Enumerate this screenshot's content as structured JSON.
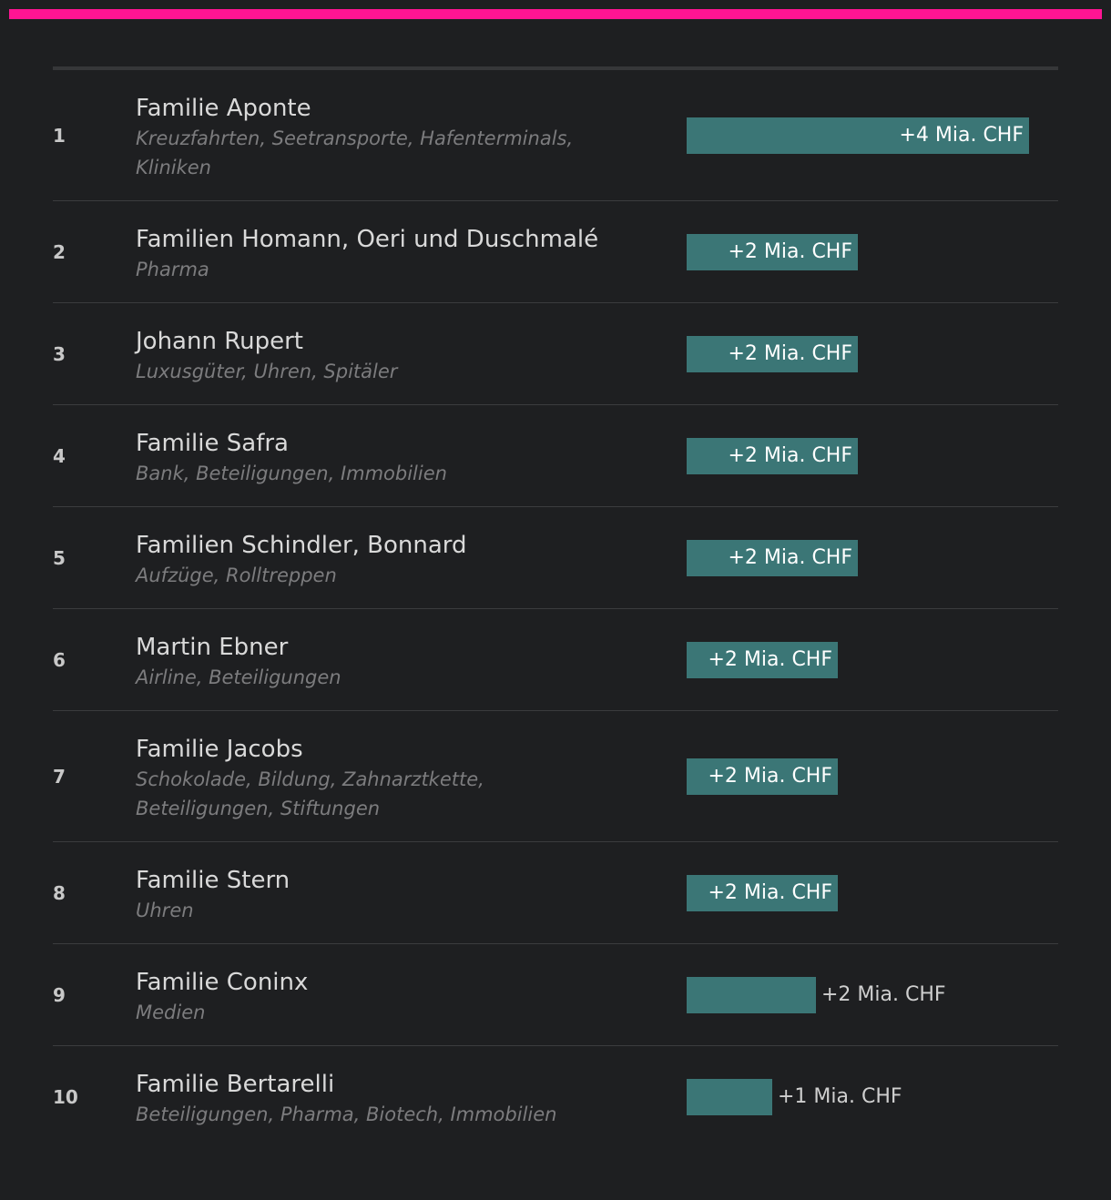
{
  "colors": {
    "accent": "#ff1493",
    "bar": "#3b7676",
    "background": "#1e1f21"
  },
  "chart_data": {
    "type": "bar",
    "orientation": "horizontal",
    "title": "",
    "categories": [
      "Familie Aponte",
      "Familien Homann, Oeri und Duschmalé",
      "Johann Rupert",
      "Familie Safra",
      "Familien Schindler, Bonnard",
      "Martin Ebner",
      "Familie Jacobs",
      "Familie Stern",
      "Familie Coninx",
      "Familie Bertarelli"
    ],
    "values": [
      4,
      2,
      2,
      2,
      2,
      1.77,
      1.77,
      1.77,
      1.51,
      1.0
    ],
    "xlim": [
      0,
      4
    ]
  },
  "rows": [
    {
      "rank": "1",
      "name": "Familie Aponte",
      "sector": "Kreuzfahrten, Seetransporte, Hafenterminals, Kliniken",
      "value": 4,
      "label": "+4 Mia. CHF"
    },
    {
      "rank": "2",
      "name": "Familien Homann, Oeri und Duschmalé",
      "sector": "Pharma",
      "value": 2,
      "label": "+2 Mia. CHF"
    },
    {
      "rank": "3",
      "name": "Johann Rupert",
      "sector": "Luxusgüter, Uhren, Spitäler",
      "value": 2,
      "label": "+2 Mia. CHF"
    },
    {
      "rank": "4",
      "name": "Familie Safra",
      "sector": "Bank, Beteiligungen, Immobilien",
      "value": 2,
      "label": "+2 Mia. CHF"
    },
    {
      "rank": "5",
      "name": "Familien Schindler, Bonnard",
      "sector": "Aufzüge, Rolltreppen",
      "value": 2,
      "label": "+2 Mia. CHF"
    },
    {
      "rank": "6",
      "name": "Martin Ebner",
      "sector": "Airline, Beteiligungen",
      "value": 1.77,
      "label": "+2 Mia. CHF"
    },
    {
      "rank": "7",
      "name": "Familie Jacobs",
      "sector": "Schokolade, Bildung, Zahnarztkette, Beteiligungen, Stiftungen",
      "value": 1.77,
      "label": "+2 Mia. CHF"
    },
    {
      "rank": "8",
      "name": "Familie Stern",
      "sector": "Uhren",
      "value": 1.77,
      "label": "+2 Mia. CHF"
    },
    {
      "rank": "9",
      "name": "Familie Coninx",
      "sector": "Medien",
      "value": 1.51,
      "label": "+2 Mia. CHF"
    },
    {
      "rank": "10",
      "name": "Familie Bertarelli",
      "sector": "Beteiligungen, Pharma, Biotech, Immobilien",
      "value": 1.0,
      "label": "+1 Mia. CHF"
    }
  ]
}
